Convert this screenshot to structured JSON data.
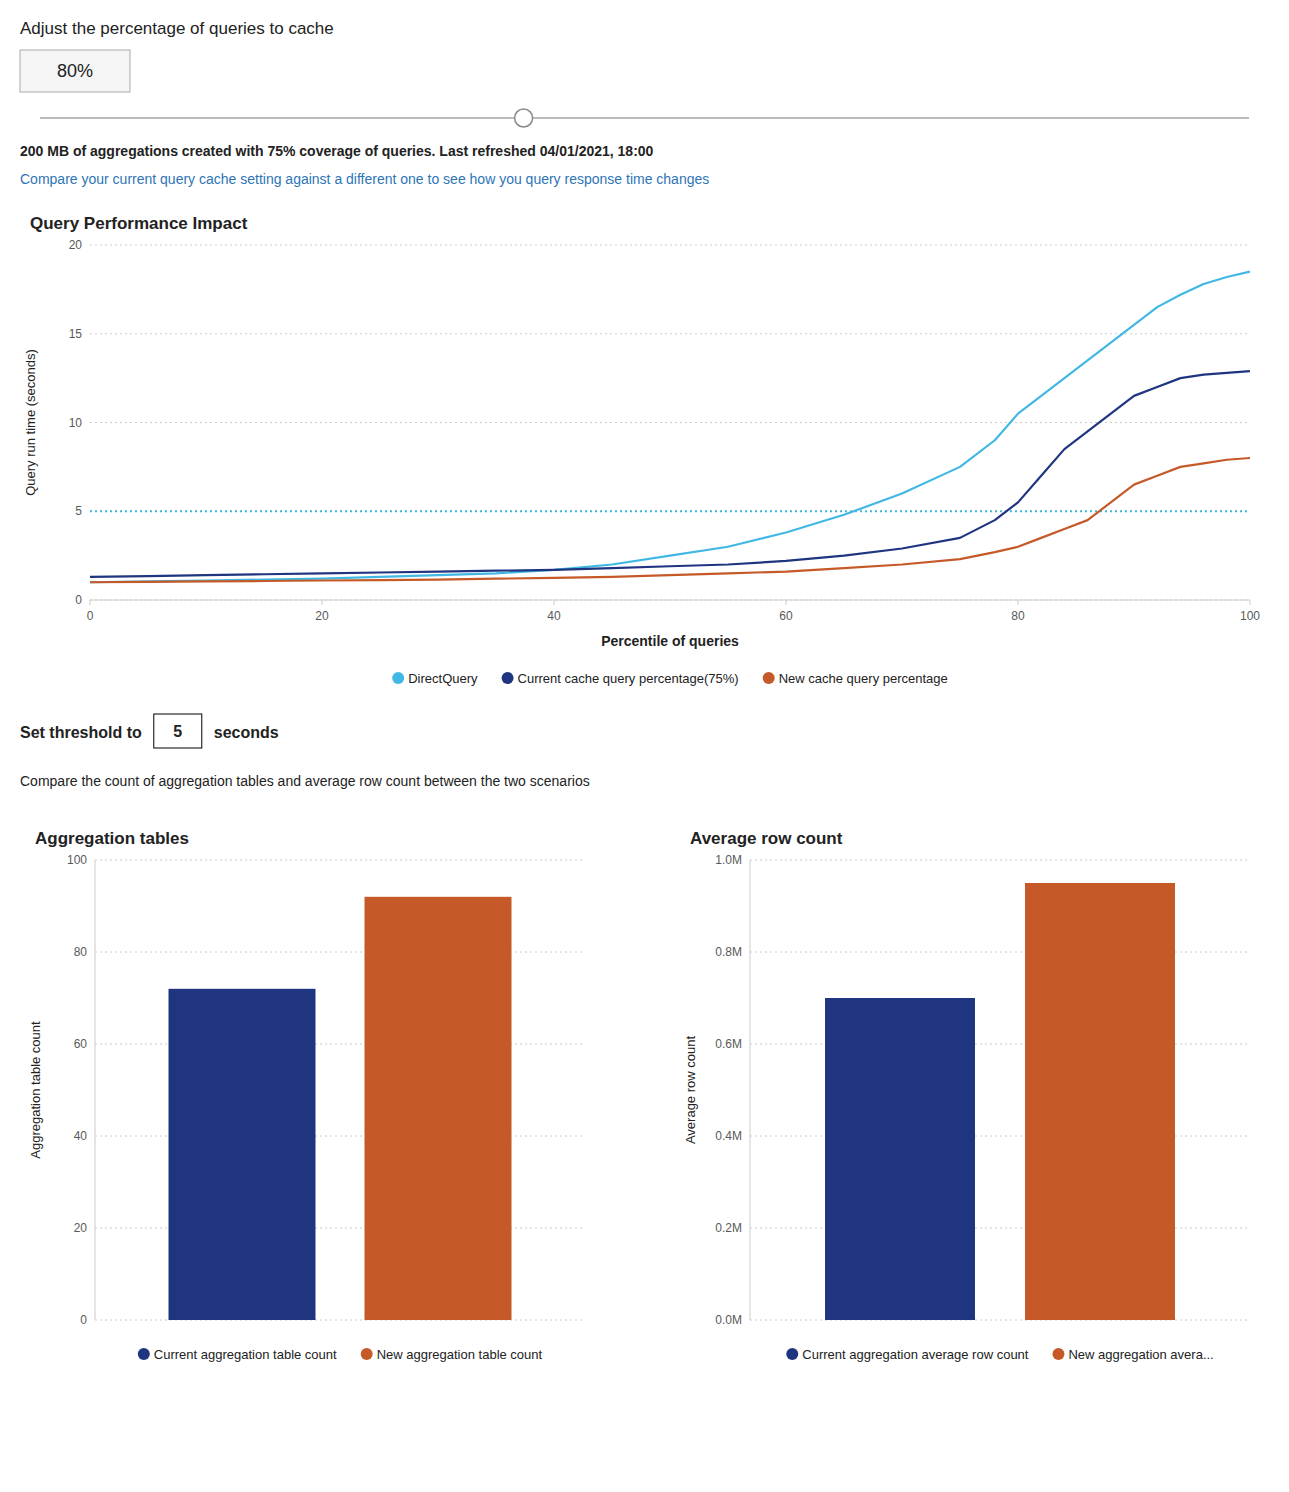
{
  "chart_data": [
    {
      "type": "line",
      "title": "Query Performance Impact",
      "xlabel": "Percentile of queries",
      "ylabel": "Query run time (seconds)",
      "x": [
        0,
        5,
        10,
        15,
        20,
        25,
        30,
        35,
        40,
        45,
        50,
        55,
        60,
        65,
        70,
        75,
        78,
        80,
        82,
        84,
        86,
        88,
        90,
        92,
        94,
        96,
        98,
        100
      ],
      "series": [
        {
          "name": "DirectQuery",
          "color": "#41B8E4",
          "values": [
            1.0,
            1.05,
            1.1,
            1.15,
            1.2,
            1.3,
            1.4,
            1.5,
            1.7,
            2.0,
            2.5,
            3.0,
            3.8,
            4.8,
            6.0,
            7.5,
            9.0,
            10.5,
            11.5,
            12.5,
            13.5,
            14.5,
            15.5,
            16.5,
            17.2,
            17.8,
            18.2,
            18.5
          ]
        },
        {
          "name": "Current cache query percentage(75%)",
          "color": "#1F3580",
          "values": [
            1.3,
            1.35,
            1.4,
            1.45,
            1.5,
            1.55,
            1.6,
            1.65,
            1.7,
            1.8,
            1.9,
            2.0,
            2.2,
            2.5,
            2.9,
            3.5,
            4.5,
            5.5,
            7.0,
            8.5,
            9.5,
            10.5,
            11.5,
            12.0,
            12.5,
            12.7,
            12.8,
            12.9
          ]
        },
        {
          "name": "New cache query percentage",
          "color": "#C55A28",
          "values": [
            1.0,
            1.02,
            1.05,
            1.07,
            1.1,
            1.12,
            1.15,
            1.2,
            1.25,
            1.3,
            1.4,
            1.5,
            1.6,
            1.8,
            2.0,
            2.3,
            2.7,
            3.0,
            3.5,
            4.0,
            4.5,
            5.5,
            6.5,
            7.0,
            7.5,
            7.7,
            7.9,
            8.0
          ]
        }
      ],
      "xlim": [
        0,
        100
      ],
      "ylim": [
        0,
        20
      ],
      "xticks": [
        0,
        20,
        40,
        60,
        80,
        100
      ],
      "yticks": [
        0,
        5,
        10,
        15,
        20
      ],
      "grid": true,
      "legend": "bottom",
      "reference_lines": [
        {
          "value": 5,
          "color": "#41B8E4",
          "line_style": "dotted"
        }
      ],
      "annotations": [
        "Adjust the percentage of queries to cache",
        "80%",
        "200 MB of aggregations created with 75% coverage of queries. Last refreshed 04/01/2021, 18:00",
        "Compare your current query cache setting against a different one to see how you query response time changes",
        "Set threshold to",
        "seconds",
        "Compare the count of aggregation tables and average row count between the two scenarios"
      ]
    },
    {
      "type": "bar",
      "title": "Aggregation tables",
      "ylabel": "Aggregation table count",
      "categories": [
        null
      ],
      "series": [
        {
          "name": "Current aggregation table count",
          "color": "#1F3580",
          "values": [
            72
          ]
        },
        {
          "name": "New aggregation table count",
          "color": "#C55A28",
          "values": [
            92
          ]
        }
      ],
      "ylim": [
        0,
        100
      ],
      "yticks": [
        0,
        20,
        40,
        60,
        80,
        100
      ],
      "grid": true,
      "legend": "bottom",
      "tick_labels": "y"
    },
    {
      "type": "bar",
      "title": "Average row count",
      "ylabel": "Average row count",
      "categories": [
        null
      ],
      "series": [
        {
          "name": "Current aggregation average row count",
          "color": "#1F3580",
          "values": [
            700000
          ]
        },
        {
          "name": "New aggregation avera...",
          "color": "#C55A28",
          "values": [
            950000
          ]
        }
      ],
      "ylim": [
        0,
        1000000
      ],
      "yticks": [
        {
          "value": 0,
          "label": "0.0M"
        },
        {
          "value": 200000,
          "label": "0.2M"
        },
        {
          "value": 400000,
          "label": "0.4M"
        },
        {
          "value": 600000,
          "label": "0.6M"
        },
        {
          "value": 800000,
          "label": "0.8M"
        },
        {
          "value": 1000000,
          "label": "1.0M"
        }
      ],
      "grid": true,
      "legend": "bottom",
      "tick_labels": "y"
    }
  ]
}
